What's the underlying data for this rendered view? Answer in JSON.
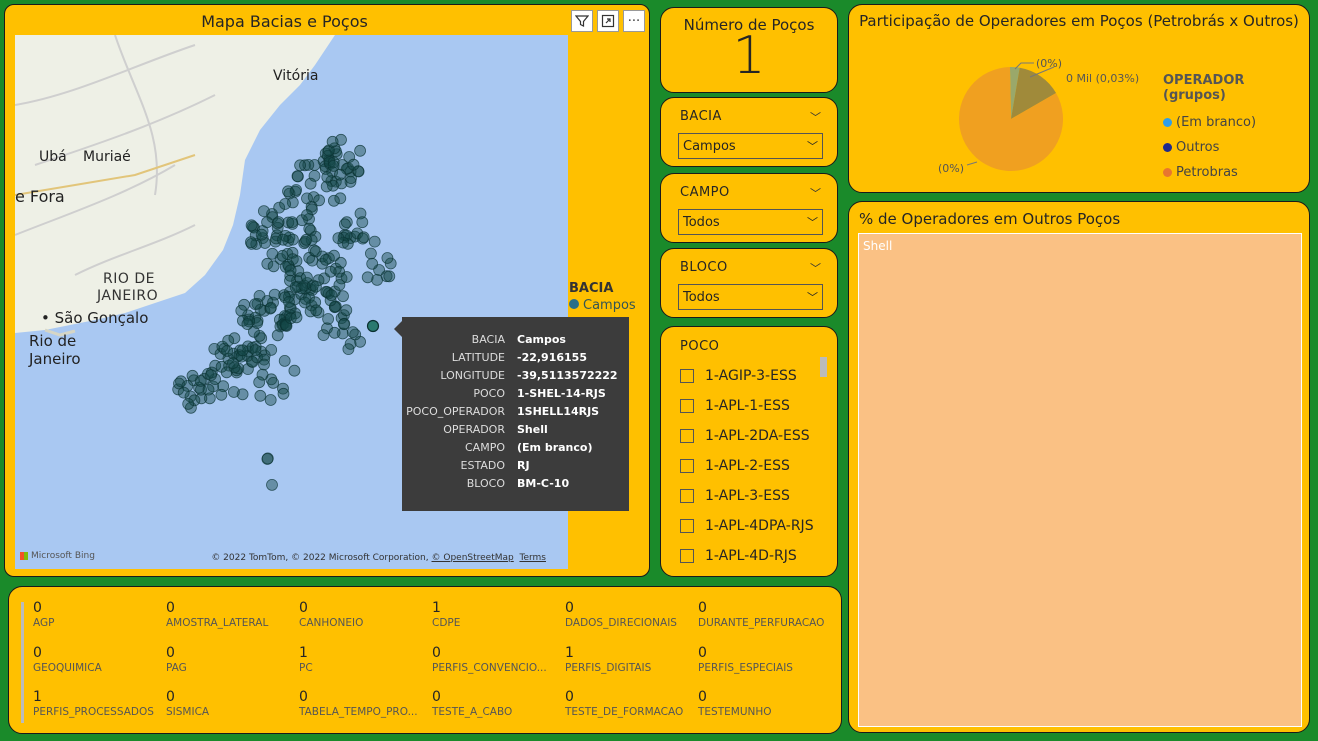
{
  "map": {
    "title": "Mapa Bacias e Poços",
    "icons": [
      "filter-icon",
      "focus-mode-icon",
      "more-options-icon"
    ],
    "cities": {
      "vitoria": "Vitória",
      "uba": "Ubá",
      "muriae": "Muriaé",
      "jf": "e Fora",
      "rj_state_1": "RIO DE",
      "rj_state_2": "JANEIRO",
      "sg": "São Gonçalo",
      "rio_1": "Rio de",
      "rio_2": "Janeiro"
    },
    "attribution": {
      "prefix": "© 2022 TomTom, © 2022 Microsoft Corporation,",
      "osm": "© OpenStreetMap",
      "terms": "Terms"
    },
    "bing": "Microsoft Bing",
    "legend": {
      "title": "BACIA",
      "item": "Campos"
    },
    "tooltip": [
      {
        "k": "BACIA",
        "v": "Campos"
      },
      {
        "k": "LATITUDE",
        "v": "-22,916155"
      },
      {
        "k": "LONGITUDE",
        "v": "-39,5113572222"
      },
      {
        "k": "POCO",
        "v": "1-SHEL-14-RJS"
      },
      {
        "k": "POCO_OPERADOR",
        "v": "1SHELL14RJS"
      },
      {
        "k": "OPERADOR",
        "v": "Shell"
      },
      {
        "k": "CAMPO",
        "v": "(Em branco)"
      },
      {
        "k": "ESTADO",
        "v": "RJ"
      },
      {
        "k": "BLOCO",
        "v": "BM-C-10"
      }
    ]
  },
  "kpi": {
    "label": "Número de Poços",
    "value": "1"
  },
  "slicers": {
    "bacia": {
      "title": "BACIA",
      "value": "Campos"
    },
    "campo": {
      "title": "CAMPO",
      "value": "Todos"
    },
    "bloco": {
      "title": "BLOCO",
      "value": "Todos"
    }
  },
  "poco": {
    "title": "POCO",
    "items": [
      "1-AGIP-3-ESS",
      "1-APL-1-ESS",
      "1-APL-2DA-ESS",
      "1-APL-2-ESS",
      "1-APL-3-ESS",
      "1-APL-4DPA-RJS",
      "1-APL-4D-RJS"
    ]
  },
  "pie": {
    "title": "Participação de Operadores em Poços (Petrobrás x Outros)",
    "labels": {
      "top": "(0%)",
      "right": "0 Mil (0,03%)",
      "bottom": "(0%)"
    },
    "legend_title": "OPERADOR (grupos)",
    "legend": [
      {
        "name": "(Em branco)",
        "color": "#2f9ee8"
      },
      {
        "name": "Outros",
        "color": "#1f2a8c"
      },
      {
        "name": "Petrobras",
        "color": "#e8762f"
      }
    ]
  },
  "chart_data": {
    "type": "pie",
    "title": "Participação de Operadores em Poços (Petrobrás x Outros)",
    "categories": [
      "(Em branco)",
      "Outros",
      "Petrobras"
    ],
    "values": [
      3,
      14,
      83
    ],
    "legend_position": "right"
  },
  "treemap": {
    "title": "% de Operadores em Outros Poços",
    "cell": "Shell"
  },
  "multi": [
    {
      "v": "0",
      "l": "AGP"
    },
    {
      "v": "0",
      "l": "AMOSTRA_LATERAL"
    },
    {
      "v": "0",
      "l": "CANHONEIO"
    },
    {
      "v": "1",
      "l": "CDPE"
    },
    {
      "v": "0",
      "l": "DADOS_DIRECIONAIS"
    },
    {
      "v": "0",
      "l": "DURANTE_PERFURACAO"
    },
    {
      "v": "0",
      "l": "GEOQUIMICA"
    },
    {
      "v": "0",
      "l": "PAG"
    },
    {
      "v": "1",
      "l": "PC"
    },
    {
      "v": "0",
      "l": "PERFIS_CONVENCIO..."
    },
    {
      "v": "1",
      "l": "PERFIS_DIGITAIS"
    },
    {
      "v": "0",
      "l": "PERFIS_ESPECIAIS"
    },
    {
      "v": "1",
      "l": "PERFIS_PROCESSADOS"
    },
    {
      "v": "0",
      "l": "SISMICA"
    },
    {
      "v": "0",
      "l": "TABELA_TEMPO_PRO..."
    },
    {
      "v": "0",
      "l": "TESTE_A_CABO"
    },
    {
      "v": "0",
      "l": "TESTE_DE_FORMACAO"
    },
    {
      "v": "0",
      "l": "TESTEMUNHO"
    }
  ]
}
